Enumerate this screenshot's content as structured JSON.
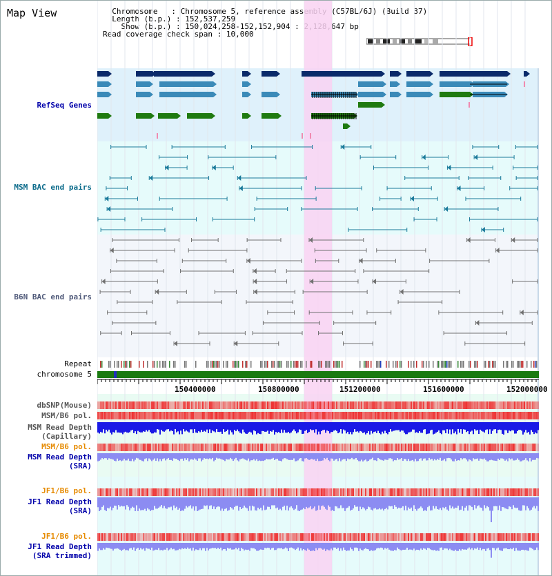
{
  "view_title": "Map View",
  "info": {
    "chromosome_key": "Chromosome",
    "chromosome_value": "Chromosome 5, reference assembly (C57BL/6J) (Build 37)",
    "length_key": "Length (b.p.)",
    "length_value": "152,537,259",
    "show_key": "Show (b.p.)",
    "show_value": "150,024,258-152,152,904 : 2,128,647 bp",
    "coverage_key": "Read coverage check span",
    "coverage_value": "10,000"
  },
  "tracks": {
    "refseq_genes": "RefSeq Genes",
    "msm_bac": "MSM BAC end pairs",
    "b6n_bac": "B6N BAC end pairs",
    "repeat": "Repeat",
    "chromosome": "chromosome 5",
    "dbsnp": "dbSNP(Mouse)",
    "msm_b6_pol_1": "MSM/B6 pol.",
    "msm_read_depth_cap_1": "MSM Read Depth",
    "msm_read_depth_cap_2": "(Capillary)",
    "msm_b6_pol_2": "MSM/B6 pol.",
    "msm_read_depth_sra_1": "MSM Read Depth",
    "msm_read_depth_sra_2": "(SRA)",
    "jf1_b6_pol_1": "JF1/B6 pol.",
    "jf1_read_depth_sra_1": "JF1 Read Depth",
    "jf1_read_depth_sra_2": "(SRA)",
    "jf1_b6_pol_2": "JF1/B6 pol.",
    "jf1_read_depth_trim_1": "JF1 Read Depth",
    "jf1_read_depth_trim_2": "(SRA trimmed)"
  },
  "axis_ticks": [
    "150400000",
    "150800000",
    "151200000",
    "151600000",
    "152000000"
  ],
  "colors": {
    "refseq_bg": "#dff1fb",
    "msm_bac_bg": "#e6fbfb",
    "b6n_bac_bg": "#f3f6fb",
    "highlight": "#f9d2f2",
    "chromosome_bar": "#1a7a10",
    "refseq_dark": "#0a2a6a",
    "refseq_mid": "#3a8ab8",
    "refseq_green": "#1f7a10",
    "msm_bac_line": "#1a7a9a",
    "b6n_bac_line": "#707070",
    "pol_red": "#e33",
    "depth_blue": "#1a1ae6",
    "depth_lavender": "#8c8cf2"
  }
}
